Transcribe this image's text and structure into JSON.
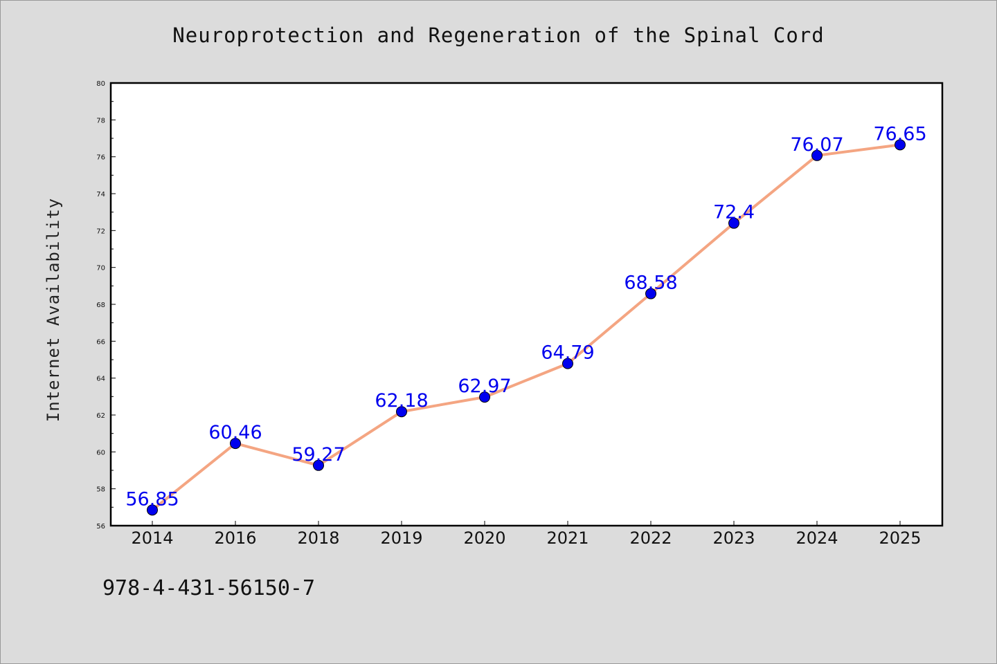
{
  "chart_data": {
    "type": "line",
    "title": "Neuroprotection and Regeneration of the Spinal Cord",
    "xlabel": "",
    "ylabel": "Internet Availability",
    "categories": [
      "2014",
      "2016",
      "2018",
      "2019",
      "2020",
      "2021",
      "2022",
      "2023",
      "2024",
      "2025"
    ],
    "series": [
      {
        "values": [
          56.85,
          60.46,
          59.27,
          62.18,
          62.97,
          64.79,
          68.58,
          72.4,
          76.07,
          76.65
        ],
        "labels": [
          "56.85",
          "60.46",
          "59.27",
          "62.18",
          "62.97",
          "64.79",
          "68.58",
          "72.4",
          "76.07",
          "76.65"
        ]
      }
    ],
    "ylim": [
      56,
      80
    ],
    "yticks": [
      "56",
      "58",
      "60",
      "62",
      "64",
      "66",
      "68",
      "70",
      "72",
      "74",
      "76",
      "78",
      "80"
    ],
    "grid": false,
    "line_color": "#f4a582",
    "marker_color": "#0000ee",
    "label_color": "#0000ee"
  },
  "footer": {
    "isbn": "978-4-431-56150-7"
  }
}
